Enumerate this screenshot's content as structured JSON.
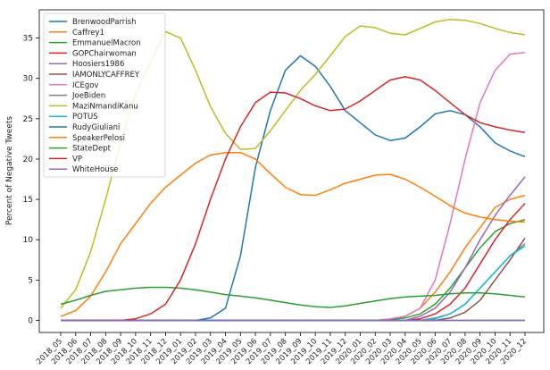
{
  "chart_data": {
    "type": "line",
    "title": "",
    "xlabel": "",
    "ylabel": "Percent of Negative Tweets",
    "ylim": [
      -1.5,
      38.5
    ],
    "yticks": [
      0,
      5,
      10,
      15,
      20,
      25,
      30,
      35
    ],
    "grid": false,
    "legend_position": "top-left",
    "x": [
      "2018_05",
      "2018_06",
      "2018_07",
      "2018_08",
      "2018_09",
      "2018_10",
      "2018_11",
      "2018_12",
      "2019_01",
      "2019_02",
      "2019_03",
      "2019_04",
      "2019_05",
      "2019_06",
      "2019_07",
      "2019_08",
      "2019_09",
      "2019_10",
      "2019_11",
      "2019_12",
      "2020_01",
      "2020_02",
      "2020_03",
      "2020_04",
      "2020_05",
      "2020_06",
      "2020_07",
      "2020_08",
      "2020_09",
      "2020_10",
      "2020_11",
      "2020_12"
    ],
    "series": [
      {
        "name": "BrenwoodParrish",
        "color": "#1f77b4",
        "values": [
          0,
          0,
          0,
          0,
          0,
          0,
          0,
          0,
          0,
          0,
          0.3,
          1.5,
          8,
          19,
          26,
          31,
          32.8,
          31.5,
          29,
          26,
          24.5,
          23,
          22.3,
          22.6,
          24,
          25.6,
          26,
          25.5,
          24,
          22,
          21,
          20.3
        ]
      },
      {
        "name": "Caffrey1",
        "color": "#ff7f0e",
        "values": [
          0,
          0,
          0,
          0,
          0,
          0,
          0,
          0,
          0,
          0,
          0,
          0,
          0,
          0,
          0,
          0,
          0,
          0,
          0,
          0,
          0,
          0,
          0,
          0.5,
          1.5,
          3.5,
          6,
          9,
          11.5,
          14,
          15,
          15.5
        ]
      },
      {
        "name": "EmmanuelMacron",
        "color": "#2ca02c",
        "values": [
          0,
          0,
          0,
          0,
          0,
          0,
          0,
          0,
          0,
          0,
          0,
          0,
          0,
          0,
          0,
          0,
          0,
          0,
          0,
          0,
          0,
          0,
          0.1,
          0.3,
          0.8,
          2,
          4,
          6.5,
          9,
          11,
          12,
          12.5
        ]
      },
      {
        "name": "GOPChairwoman",
        "color": "#d62728",
        "values": [
          0,
          0,
          0,
          0,
          0,
          0,
          0,
          0,
          0,
          0,
          0,
          0,
          0,
          0,
          0,
          0,
          0,
          0,
          0,
          0,
          0,
          0,
          0,
          0,
          0.2,
          0.8,
          2,
          4,
          7,
          10,
          12.5,
          14.5
        ]
      },
      {
        "name": "Hoosiers1986",
        "color": "#9467bd",
        "values": [
          0,
          0,
          0,
          0,
          0,
          0,
          0,
          0,
          0,
          0,
          0,
          0,
          0,
          0,
          0,
          0,
          0,
          0,
          0,
          0,
          0,
          0,
          0,
          0,
          0.5,
          1.5,
          3.5,
          6.5,
          10,
          13,
          15.5,
          17.8
        ]
      },
      {
        "name": "IAMONLYCAFFREY",
        "color": "#8c564b",
        "values": [
          0,
          0,
          0,
          0,
          0,
          0,
          0,
          0,
          0,
          0,
          0,
          0,
          0,
          0,
          0,
          0,
          0,
          0,
          0,
          0,
          0,
          0,
          0,
          0,
          0,
          0,
          0.3,
          1,
          2.5,
          5,
          7.5,
          10.2
        ]
      },
      {
        "name": "ICEgov",
        "color": "#e377c2",
        "values": [
          0,
          0,
          0,
          0,
          0,
          0,
          0,
          0,
          0,
          0,
          0,
          0,
          0,
          0,
          0,
          0,
          0,
          0,
          0,
          0,
          0,
          0,
          0.2,
          0.5,
          1.5,
          5,
          12,
          20,
          27,
          31,
          33,
          33.2
        ]
      },
      {
        "name": "JoeBiden",
        "color": "#7f7f7f",
        "values": [
          0,
          0,
          0,
          0,
          0,
          0,
          0,
          0,
          0,
          0,
          0,
          0,
          0,
          0,
          0,
          0,
          0,
          0,
          0,
          0,
          0,
          0,
          0,
          0,
          0,
          0.3,
          0.8,
          2,
          4,
          6,
          8,
          9.5
        ]
      },
      {
        "name": "MaziNmandiKanu",
        "color": "#bcbd22",
        "values": [
          1.5,
          3.8,
          8.5,
          15,
          22,
          28,
          32,
          35.8,
          35,
          31,
          26.5,
          23.2,
          21.2,
          21.3,
          23.5,
          26,
          28.5,
          30.5,
          32.8,
          35.2,
          36.5,
          36.3,
          35.6,
          35.4,
          36.2,
          37,
          37.3,
          37.2,
          36.8,
          36.2,
          35.7,
          35.4
        ]
      },
      {
        "name": "POTUS",
        "color": "#17becf",
        "values": [
          0,
          0,
          0,
          0,
          0,
          0,
          0,
          0,
          0,
          0,
          0,
          0,
          0,
          0,
          0,
          0,
          0,
          0,
          0,
          0,
          0,
          0,
          0,
          0,
          0,
          0.2,
          0.8,
          2,
          4,
          6,
          8,
          9.2
        ]
      },
      {
        "name": "RudyGiuliani",
        "color": "#1f77b4",
        "values": [
          0,
          0,
          0,
          0,
          0,
          0,
          0,
          0,
          0,
          0,
          0,
          0,
          0,
          0,
          0,
          0,
          0,
          0,
          0,
          0,
          0,
          0,
          0,
          0,
          0,
          0,
          0,
          0,
          0,
          0,
          0,
          0
        ]
      },
      {
        "name": "SpeakerPelosi",
        "color": "#ff7f0e",
        "values": [
          0.5,
          1.2,
          3,
          6,
          9.5,
          12,
          14.5,
          16.5,
          18,
          19.5,
          20.5,
          20.8,
          20.8,
          20,
          18.2,
          16.5,
          15.6,
          15.5,
          16.2,
          17,
          17.5,
          18,
          18.1,
          17.5,
          16.5,
          15.4,
          14.2,
          13.3,
          12.8,
          12.5,
          12.3,
          12.2
        ]
      },
      {
        "name": "StateDept",
        "color": "#2ca02c",
        "values": [
          2,
          2.5,
          3.1,
          3.6,
          3.8,
          4,
          4.1,
          4.1,
          4.0,
          3.8,
          3.5,
          3.2,
          3.0,
          2.8,
          2.5,
          2.2,
          1.9,
          1.7,
          1.6,
          1.8,
          2.1,
          2.4,
          2.7,
          2.9,
          3.0,
          3.1,
          3.3,
          3.4,
          3.4,
          3.3,
          3.1,
          2.9
        ]
      },
      {
        "name": "VP",
        "color": "#d62728",
        "values": [
          0,
          0,
          0,
          0,
          0,
          0.2,
          0.8,
          2,
          5,
          9.5,
          15,
          20,
          24,
          27,
          28.3,
          28.2,
          27.5,
          26.6,
          26,
          26.2,
          27.2,
          28.5,
          29.8,
          30.2,
          29.8,
          28.5,
          27,
          25.5,
          24.5,
          24,
          23.6,
          23.3
        ]
      },
      {
        "name": "WhiteHouse",
        "color": "#9467bd",
        "values": [
          0,
          0,
          0,
          0,
          0,
          0,
          0,
          0,
          0,
          0,
          0,
          0,
          0,
          0,
          0,
          0,
          0,
          0,
          0,
          0,
          0,
          0,
          0,
          0,
          0,
          0,
          0,
          0,
          0,
          0,
          0,
          0
        ]
      }
    ]
  }
}
